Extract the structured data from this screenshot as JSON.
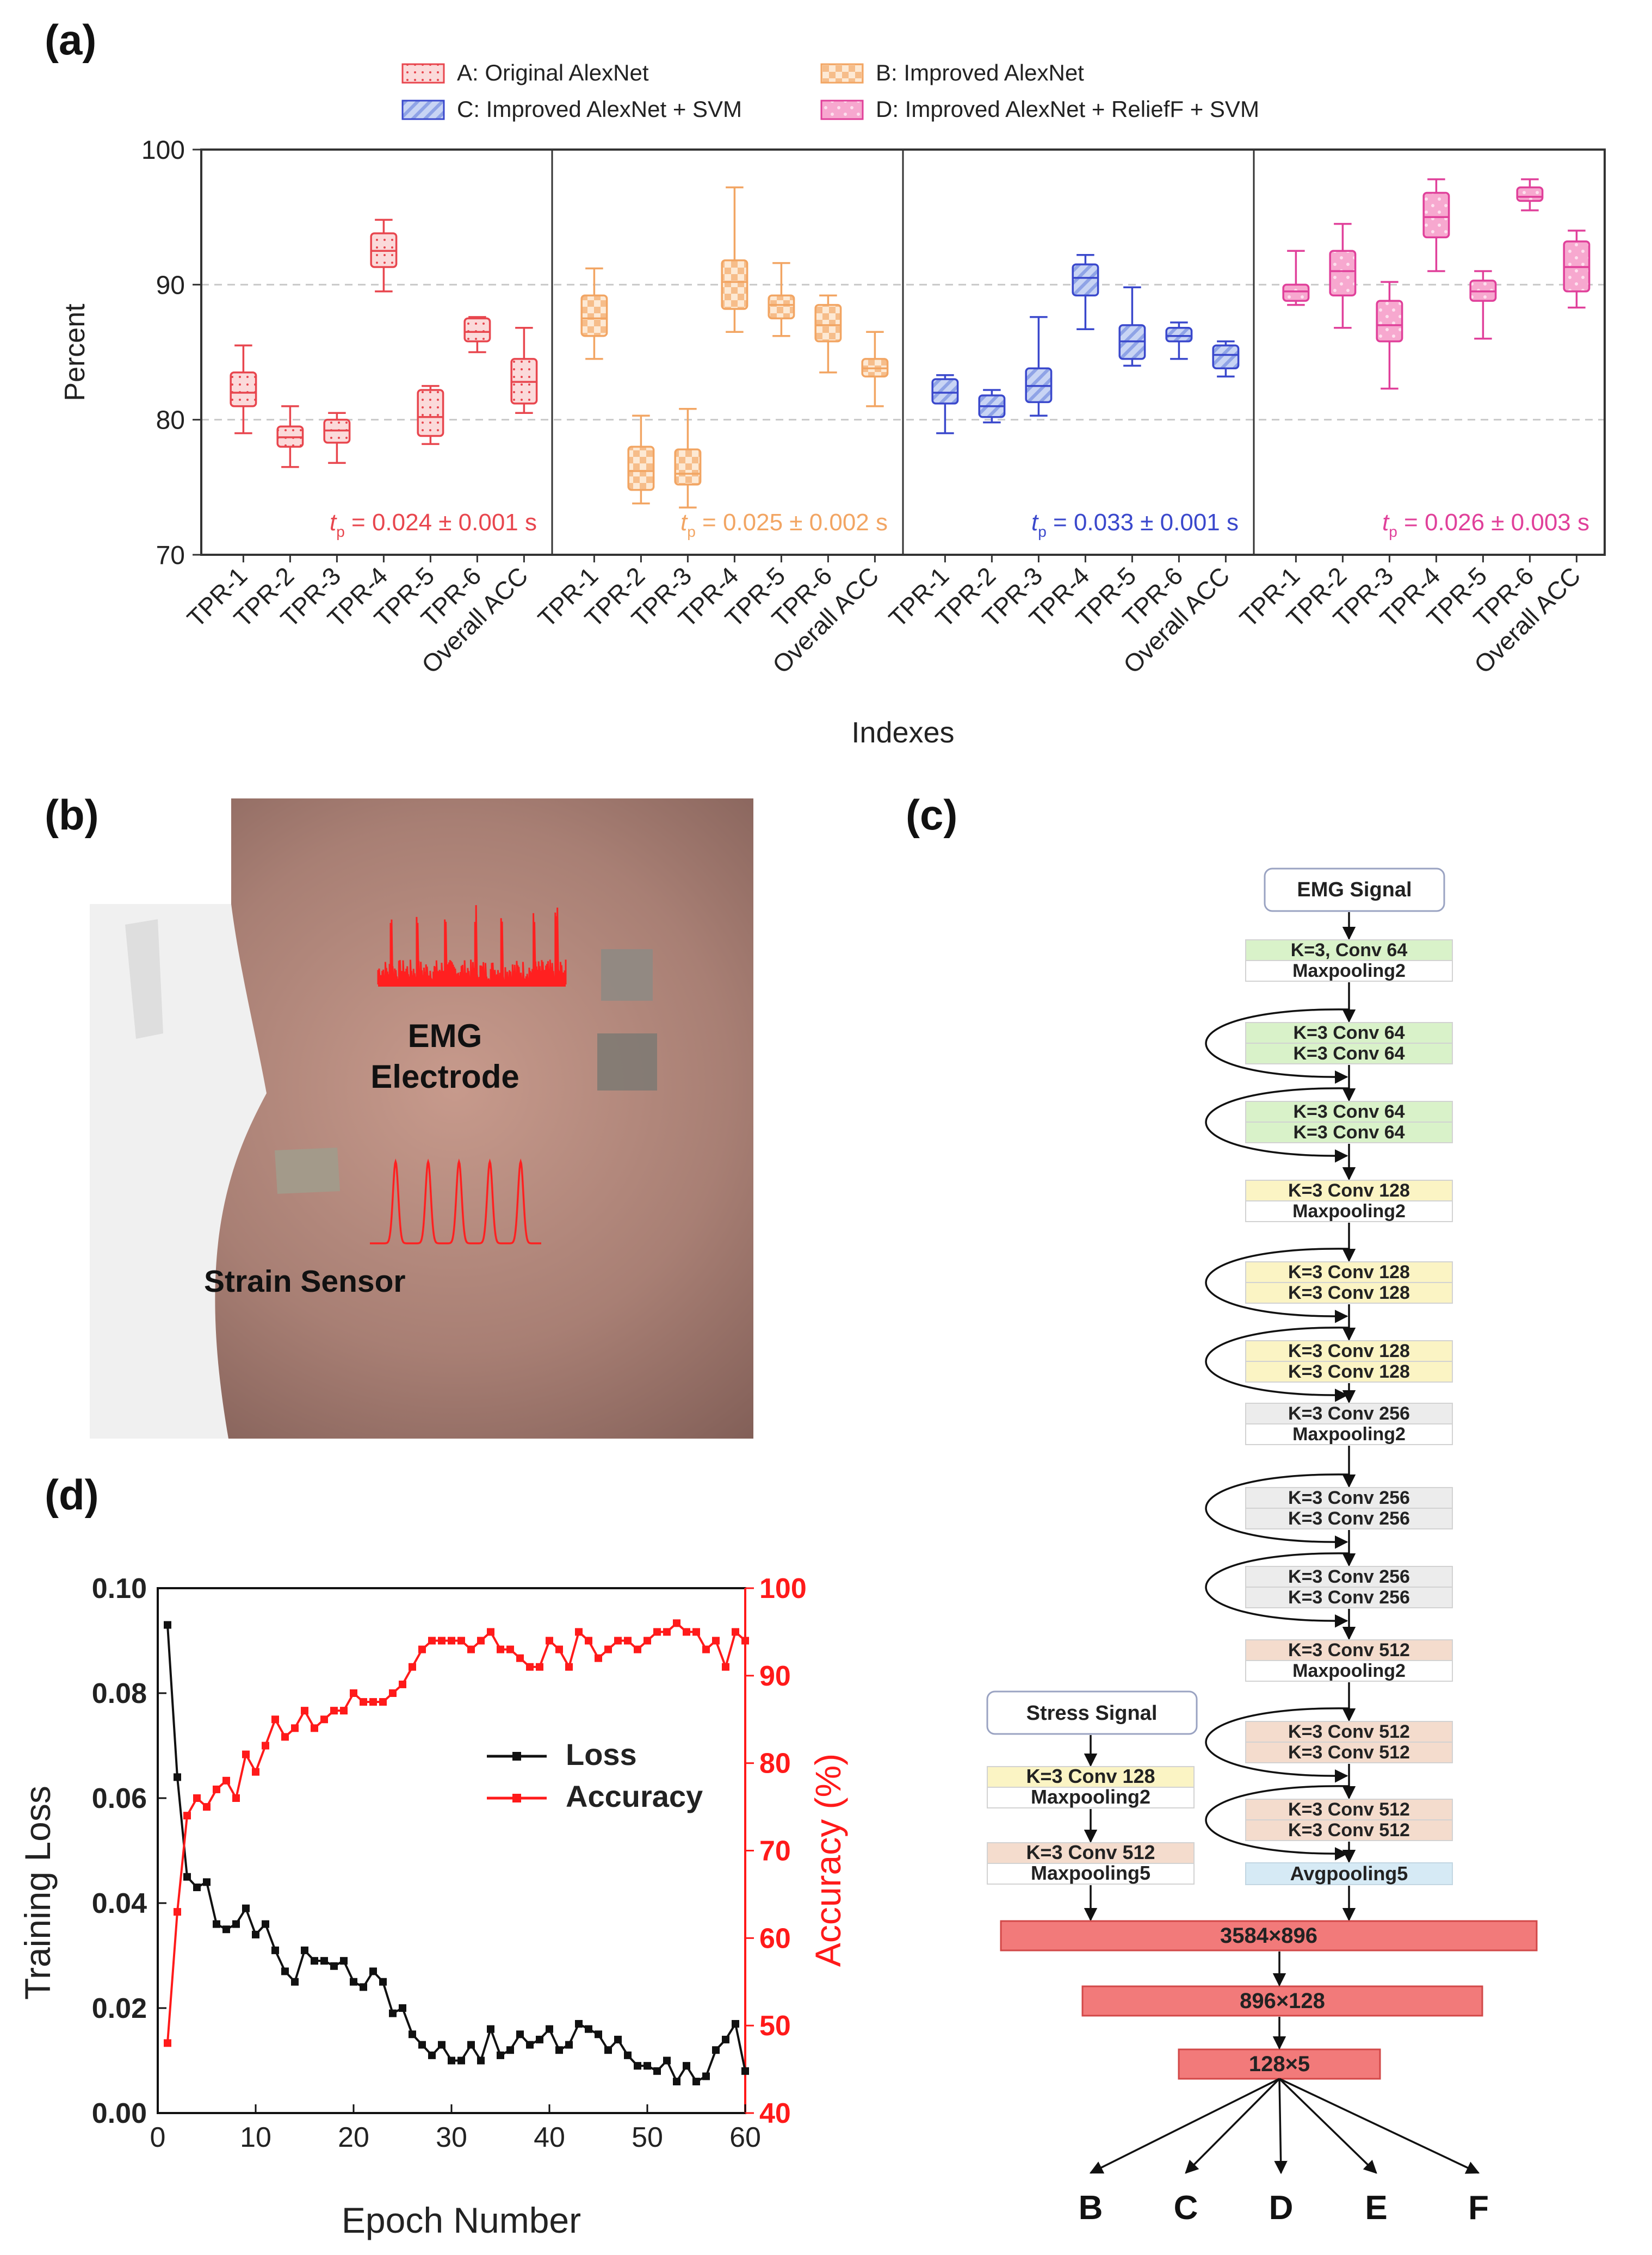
{
  "panel_labels": {
    "a": "(a)",
    "b": "(b)",
    "c": "(c)",
    "d": "(d)"
  },
  "chart_data": [
    {
      "id": "a",
      "type": "boxplot",
      "xlabel": "Indexes",
      "ylabel": "Percent",
      "ylim": [
        70,
        100
      ],
      "yticks": [
        70,
        80,
        90,
        100
      ],
      "grid": "horizontal dashed at 80 and 90",
      "legend_position": "top",
      "categories": [
        "TPR-1",
        "TPR-2",
        "TPR-3",
        "TPR-4",
        "TPR-5",
        "TPR-6",
        "Overall ACC"
      ],
      "groups": [
        {
          "name": "A: Original AlexNet",
          "color": "#e8464e",
          "fill": "#fbdada",
          "annotation": {
            "symbol": "t",
            "sub": "p",
            "text": " = 0.024 ± 0.001 s"
          },
          "boxes": [
            {
              "min": 79,
              "q1": 81,
              "median": 82,
              "q3": 83.5,
              "max": 85.5
            },
            {
              "min": 76.5,
              "q1": 78,
              "median": 78.7,
              "q3": 79.5,
              "max": 81
            },
            {
              "min": 76.8,
              "q1": 78.3,
              "median": 79.2,
              "q3": 80,
              "max": 80.5
            },
            {
              "min": 89.5,
              "q1": 91.3,
              "median": 92.5,
              "q3": 93.8,
              "max": 94.8
            },
            {
              "min": 78.2,
              "q1": 78.8,
              "median": 80.2,
              "q3": 82.2,
              "max": 82.5
            },
            {
              "min": 85,
              "q1": 85.8,
              "median": 86.5,
              "q3": 87.5,
              "max": 87.6
            },
            {
              "min": 80.5,
              "q1": 81.2,
              "median": 82.8,
              "q3": 84.5,
              "max": 86.8
            }
          ]
        },
        {
          "name": "B: Improved AlexNet",
          "color": "#f2a563",
          "fill": "#fbe0c6",
          "annotation": {
            "symbol": "t",
            "sub": "p",
            "text": " = 0.025 ± 0.002 s"
          },
          "boxes": [
            {
              "min": 84.5,
              "q1": 86.2,
              "median": 87.5,
              "q3": 89.2,
              "max": 91.2
            },
            {
              "min": 73.8,
              "q1": 74.8,
              "median": 76.2,
              "q3": 78,
              "max": 80.3
            },
            {
              "min": 73.5,
              "q1": 75.2,
              "median": 76,
              "q3": 77.8,
              "max": 80.8
            },
            {
              "min": 86.5,
              "q1": 88.2,
              "median": 90.2,
              "q3": 91.8,
              "max": 97.2
            },
            {
              "min": 86.2,
              "q1": 87.5,
              "median": 88.5,
              "q3": 89.2,
              "max": 91.6
            },
            {
              "min": 83.5,
              "q1": 85.8,
              "median": 87,
              "q3": 88.5,
              "max": 89.2
            },
            {
              "min": 81,
              "q1": 83.2,
              "median": 83.8,
              "q3": 84.5,
              "max": 86.5
            }
          ]
        },
        {
          "name": "C: Improved AlexNet + SVM",
          "color": "#3a48cc",
          "fill": "#b9c7ee",
          "annotation": {
            "symbol": "t",
            "sub": "p",
            "text": " = 0.033 ± 0.001 s"
          },
          "boxes": [
            {
              "min": 79,
              "q1": 81.2,
              "median": 82,
              "q3": 83,
              "max": 83.3
            },
            {
              "min": 79.8,
              "q1": 80.2,
              "median": 81,
              "q3": 81.8,
              "max": 82.2
            },
            {
              "min": 80.3,
              "q1": 81.3,
              "median": 82.5,
              "q3": 83.8,
              "max": 87.6
            },
            {
              "min": 86.7,
              "q1": 89.2,
              "median": 90.5,
              "q3": 91.5,
              "max": 92.2
            },
            {
              "min": 84,
              "q1": 84.5,
              "median": 85.8,
              "q3": 87,
              "max": 89.8
            },
            {
              "min": 84.5,
              "q1": 85.8,
              "median": 86.2,
              "q3": 86.8,
              "max": 87.2
            },
            {
              "min": 83.2,
              "q1": 83.8,
              "median": 84.8,
              "q3": 85.5,
              "max": 85.8
            }
          ]
        },
        {
          "name": "D: Improved AlexNet + ReliefF + SVM",
          "color": "#e0409a",
          "fill": "#f6b8d8",
          "annotation": {
            "symbol": "t",
            "sub": "p",
            "text": " = 0.026 ± 0.003 s"
          },
          "boxes": [
            {
              "min": 88.5,
              "q1": 88.8,
              "median": 89.5,
              "q3": 90,
              "max": 92.5
            },
            {
              "min": 86.8,
              "q1": 89.2,
              "median": 91,
              "q3": 92.5,
              "max": 94.5
            },
            {
              "min": 82.3,
              "q1": 85.8,
              "median": 87,
              "q3": 88.8,
              "max": 90.2
            },
            {
              "min": 91,
              "q1": 93.5,
              "median": 95,
              "q3": 96.8,
              "max": 97.8
            },
            {
              "min": 86,
              "q1": 88.8,
              "median": 89.5,
              "q3": 90.3,
              "max": 91
            },
            {
              "min": 95.5,
              "q1": 96.2,
              "median": 96.5,
              "q3": 97.2,
              "max": 97.8
            },
            {
              "min": 88.3,
              "q1": 89.5,
              "median": 91.3,
              "q3": 93.2,
              "max": 94
            }
          ]
        }
      ]
    },
    {
      "id": "d",
      "type": "line",
      "xlabel": "Epoch Number",
      "ylabel": "Training Loss",
      "y2label": "Accuracy (%)",
      "xlim": [
        0,
        60
      ],
      "ylim": [
        0,
        0.1
      ],
      "y2lim": [
        40,
        100
      ],
      "xticks": [
        0,
        10,
        20,
        30,
        40,
        50,
        60
      ],
      "yticks": [
        "0.00",
        "0.02",
        "0.04",
        "0.06",
        "0.08",
        "0.10"
      ],
      "y2ticks": [
        40,
        50,
        60,
        70,
        80,
        90,
        100
      ],
      "legend_position": "center-right",
      "series": [
        {
          "name": "Loss",
          "color": "#111111",
          "axis": "left",
          "x": [
            1,
            2,
            3,
            4,
            5,
            6,
            7,
            8,
            9,
            10,
            11,
            12,
            13,
            14,
            15,
            16,
            17,
            18,
            19,
            20,
            21,
            22,
            23,
            24,
            25,
            26,
            27,
            28,
            29,
            30,
            31,
            32,
            33,
            34,
            35,
            36,
            37,
            38,
            39,
            40,
            41,
            42,
            43,
            44,
            45,
            46,
            47,
            48,
            49,
            50,
            51,
            52,
            53,
            54,
            55,
            56,
            57,
            58,
            59,
            60
          ],
          "y": [
            0.093,
            0.064,
            0.045,
            0.043,
            0.044,
            0.036,
            0.035,
            0.036,
            0.039,
            0.034,
            0.036,
            0.031,
            0.027,
            0.025,
            0.031,
            0.029,
            0.029,
            0.028,
            0.029,
            0.025,
            0.024,
            0.027,
            0.025,
            0.019,
            0.02,
            0.015,
            0.013,
            0.011,
            0.013,
            0.01,
            0.01,
            0.013,
            0.01,
            0.016,
            0.011,
            0.012,
            0.015,
            0.013,
            0.014,
            0.016,
            0.012,
            0.013,
            0.017,
            0.016,
            0.015,
            0.012,
            0.014,
            0.011,
            0.009,
            0.009,
            0.008,
            0.01,
            0.006,
            0.009,
            0.006,
            0.007,
            0.012,
            0.014,
            0.017,
            0.008
          ]
        },
        {
          "name": "Accuracy",
          "color": "#ff1a1a",
          "axis": "right",
          "x": [
            1,
            2,
            3,
            4,
            5,
            6,
            7,
            8,
            9,
            10,
            11,
            12,
            13,
            14,
            15,
            16,
            17,
            18,
            19,
            20,
            21,
            22,
            23,
            24,
            25,
            26,
            27,
            28,
            29,
            30,
            31,
            32,
            33,
            34,
            35,
            36,
            37,
            38,
            39,
            40,
            41,
            42,
            43,
            44,
            45,
            46,
            47,
            48,
            49,
            50,
            51,
            52,
            53,
            54,
            55,
            56,
            57,
            58,
            59,
            60
          ],
          "y": [
            48,
            63,
            74,
            76,
            75,
            77,
            78,
            76,
            81,
            79,
            82,
            85,
            83,
            84,
            86,
            84,
            85,
            86,
            86,
            88,
            87,
            87,
            87,
            88,
            89,
            91,
            93,
            94,
            94,
            94,
            94,
            93,
            94,
            95,
            93,
            93,
            92,
            91,
            91,
            94,
            93,
            91,
            95,
            94,
            92,
            93,
            94,
            94,
            93,
            94,
            95,
            95,
            96,
            95,
            95,
            93,
            94,
            91,
            95,
            94
          ]
        }
      ]
    }
  ],
  "photo_b": {
    "labels": {
      "emg": [
        "EMG",
        "Electrode"
      ],
      "strain": "Strain Sensor"
    }
  },
  "diagram_c": {
    "left_branch": {
      "input": "Stress Signal",
      "blocks": [
        [
          "K=3 Conv 128",
          "Maxpooling2"
        ],
        [
          "K=3 Conv 512",
          "Maxpooling5"
        ]
      ]
    },
    "right_branch": {
      "input": "EMG Signal",
      "blocks": [
        {
          "lines": [
            "K=3, Conv 64",
            "Maxpooling2"
          ],
          "color": "#d9f2c9",
          "residual": false
        },
        {
          "lines": [
            "K=3 Conv 64",
            "K=3 Conv 64"
          ],
          "color": "#d9f2c9",
          "residual": true
        },
        {
          "lines": [
            "K=3 Conv 64",
            "K=3 Conv 64"
          ],
          "color": "#d9f2c9",
          "residual": true
        },
        {
          "lines": [
            "K=3 Conv 128",
            "Maxpooling2"
          ],
          "color": "#fbf4c4",
          "residual": false
        },
        {
          "lines": [
            "K=3 Conv 128",
            "K=3 Conv 128"
          ],
          "color": "#fbf4c4",
          "residual": true
        },
        {
          "lines": [
            "K=3 Conv 128",
            "K=3 Conv 128"
          ],
          "color": "#fbf4c4",
          "residual": true
        },
        {
          "lines": [
            "K=3 Conv 256",
            "Maxpooling2"
          ],
          "color": "#ececec",
          "residual": false
        },
        {
          "lines": [
            "K=3 Conv 256",
            "K=3 Conv 256"
          ],
          "color": "#ececec",
          "residual": true
        },
        {
          "lines": [
            "K=3 Conv 256",
            "K=3 Conv 256"
          ],
          "color": "#ececec",
          "residual": true
        },
        {
          "lines": [
            "K=3 Conv 512",
            "Maxpooling2"
          ],
          "color": "#f4dccd",
          "residual": false
        },
        {
          "lines": [
            "K=3 Conv 512",
            "K=3 Conv 512"
          ],
          "color": "#f4dccd",
          "residual": true
        },
        {
          "lines": [
            "K=3 Conv 512",
            "K=3 Conv 512"
          ],
          "color": "#f4dccd",
          "residual": true
        }
      ],
      "final": "Avgpooling5"
    },
    "fc_layers": [
      "3584×896",
      "896×128",
      "128×5"
    ],
    "outputs": [
      "B",
      "C",
      "D",
      "E",
      "F"
    ]
  }
}
